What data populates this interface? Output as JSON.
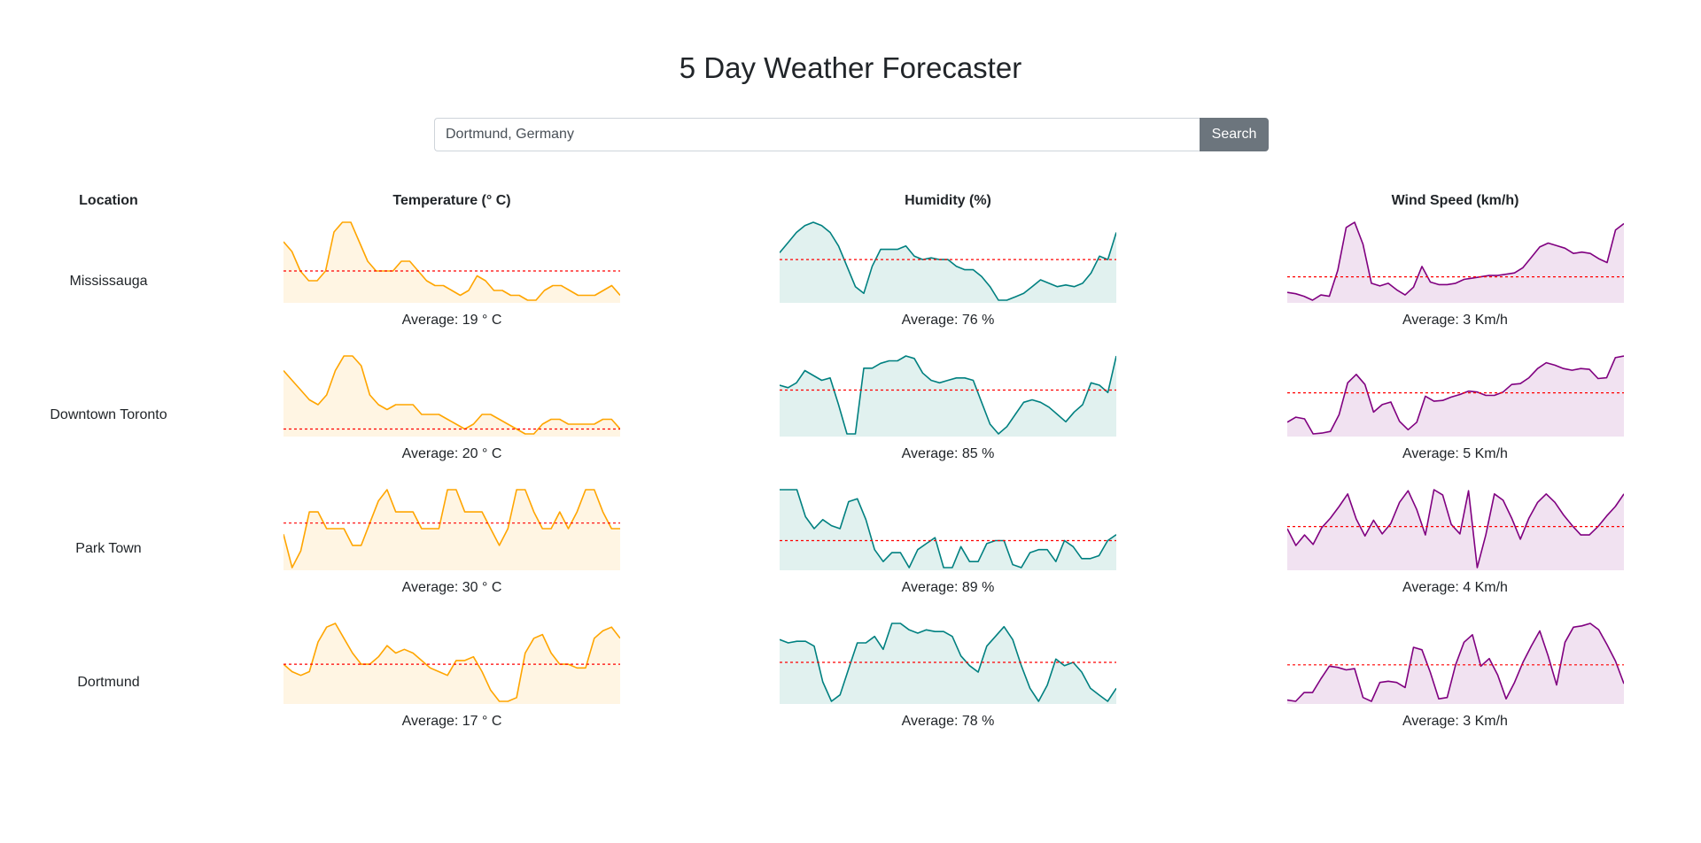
{
  "header": {
    "title": "5 Day Weather Forecaster"
  },
  "search": {
    "value": "Dortmund, Germany",
    "button_label": "Search"
  },
  "table": {
    "headers": {
      "location": "Location",
      "temperature": "Temperature (° C)",
      "humidity": "Humidity (%)",
      "wind": "Wind Speed (km/h)"
    }
  },
  "colors": {
    "temperature_line": "#ffa500",
    "temperature_fill": "#fff5e3",
    "humidity_line": "#008080",
    "humidity_fill": "#e1f1ef",
    "wind_line": "#800080",
    "wind_fill": "#f1e2f1",
    "average_line": "#ff0000"
  },
  "chart_data": [
    {
      "type": "line",
      "location": "Mississauga",
      "temperature": {
        "average_label": "Average: 19 ° C",
        "values": [
          22,
          21,
          19,
          18,
          18,
          19,
          23,
          24,
          24,
          22,
          20,
          19,
          19,
          19,
          20,
          20,
          19,
          18,
          17.5,
          17.5,
          17,
          16.5,
          17,
          18.5,
          18,
          17,
          17,
          16.5,
          16.5,
          16,
          16,
          17,
          17.5,
          17.5,
          17,
          16.5,
          16.5,
          16.5,
          17,
          17.5,
          16.5
        ]
      },
      "humidity": {
        "average_label": "Average: 76 %",
        "values": [
          78,
          81,
          84,
          86,
          87,
          86,
          84,
          80,
          74,
          68,
          66,
          74,
          79,
          79,
          79,
          80,
          77,
          76,
          76.5,
          76,
          76,
          74,
          73,
          73,
          71,
          68,
          64,
          64,
          65,
          66,
          68,
          70,
          69,
          68,
          68.5,
          68,
          69,
          72,
          77,
          76,
          84
        ]
      },
      "wind": {
        "average_label": "Average: 3 Km/h",
        "values": [
          1.8,
          1.7,
          1.5,
          1.2,
          1.6,
          1.5,
          3.5,
          6.8,
          7.2,
          5.5,
          2.5,
          2.3,
          2.5,
          2,
          1.6,
          2.2,
          3.8,
          2.6,
          2.4,
          2.4,
          2.5,
          2.8,
          2.9,
          3,
          3.1,
          3.1,
          3.2,
          3.3,
          3.7,
          4.5,
          5.3,
          5.6,
          5.4,
          5.2,
          4.8,
          4.9,
          4.8,
          4.4,
          4.1,
          6.6,
          7.1
        ]
      },
      "averages": {
        "temperature": 19,
        "humidity": 76,
        "wind": 3
      }
    },
    {
      "type": "line",
      "location": "Downtown Toronto",
      "temperature": {
        "average_label": "Average: 20 ° C",
        "values": [
          26,
          25,
          24,
          23,
          22.5,
          23.5,
          26,
          27.5,
          27.5,
          26.5,
          23.5,
          22.5,
          22,
          22.5,
          22.5,
          22.5,
          21.5,
          21.5,
          21.5,
          21,
          20.5,
          20,
          20.5,
          21.5,
          21.5,
          21,
          20.5,
          20,
          19.5,
          19.5,
          20.5,
          21,
          21,
          20.5,
          20.5,
          20.5,
          20.5,
          21,
          21,
          20
        ]
      },
      "humidity": {
        "average_label": "Average: 85 %",
        "values": [
          87,
          86,
          88,
          93,
          91,
          89,
          90,
          79,
          67,
          67,
          94,
          94,
          96,
          97,
          97,
          99,
          98,
          92,
          89,
          88,
          89,
          90,
          90,
          89,
          80,
          71,
          67,
          70,
          75,
          80,
          81,
          80,
          78,
          75,
          72,
          76,
          79,
          88,
          87,
          84,
          99
        ]
      },
      "wind": {
        "average_label": "Average: 5 Km/h",
        "values": [
          1.5,
          2.1,
          1.9,
          0.1,
          0.2,
          0.4,
          2.4,
          6.2,
          7.2,
          6,
          2.7,
          3.6,
          3.9,
          1.6,
          0.6,
          1.5,
          4.6,
          4,
          4.1,
          4.5,
          4.8,
          5.2,
          5.1,
          4.7,
          4.7,
          5.1,
          6,
          6.1,
          6.8,
          7.9,
          8.6,
          8.3,
          7.9,
          7.7,
          7.9,
          7.8,
          6.7,
          6.8,
          9.2,
          9.4
        ]
      },
      "averages": {
        "temperature": 20,
        "humidity": 85,
        "wind": 5
      }
    },
    {
      "type": "line",
      "location": "Park Town",
      "temperature": {
        "average_label": "Average: 30 ° C",
        "values": [
          29,
          26,
          27.5,
          31,
          31,
          29.5,
          29.5,
          29.5,
          28,
          28,
          30,
          32,
          33,
          31,
          31,
          31,
          29.5,
          29.5,
          29.5,
          33,
          33,
          31,
          31,
          31,
          29.5,
          28,
          29.5,
          33,
          33,
          31,
          29.5,
          29.5,
          31,
          29.5,
          31,
          33,
          33,
          31,
          29.5,
          29.5
        ]
      },
      "humidity": {
        "average_label": "Average: 89 %",
        "values": [
          106,
          106,
          106,
          97,
          93,
          96,
          94,
          93,
          102,
          103,
          96,
          86,
          82,
          85,
          85,
          80,
          86,
          88,
          90,
          80,
          80,
          87,
          82,
          82,
          88,
          89,
          89,
          81,
          80,
          85,
          86,
          86,
          82,
          89,
          87,
          83,
          83,
          84,
          89,
          91
        ]
      },
      "wind": {
        "average_label": "Average: 4 Km/h",
        "values": [
          3.8,
          2.2,
          3.2,
          2.3,
          3.9,
          4.8,
          5.9,
          7.1,
          4.7,
          3.1,
          4.6,
          3.3,
          4.3,
          6.3,
          7.4,
          5.6,
          3.2,
          7.5,
          7,
          4.2,
          3.3,
          7.4,
          0.1,
          3.2,
          7.1,
          6.5,
          4.8,
          2.8,
          4.8,
          6.3,
          7.1,
          6.3,
          5.1,
          4.1,
          3.2,
          3.2,
          4,
          5,
          5.9,
          7.1
        ]
      },
      "averages": {
        "temperature": 30,
        "humidity": 89,
        "wind": 4
      }
    },
    {
      "type": "line",
      "location": "Dortmund",
      "temperature": {
        "average_label": "Average: 17 ° C",
        "values": [
          17,
          16,
          15.5,
          16,
          20,
          22,
          22.5,
          20.5,
          18.5,
          17,
          17,
          18,
          19.5,
          18.5,
          19,
          18.5,
          17.5,
          16.5,
          16,
          15.5,
          17.5,
          17.5,
          18,
          16,
          13.5,
          12,
          12,
          12.5,
          18.5,
          20.5,
          21,
          18.5,
          17,
          17,
          16.5,
          16.5,
          20.5,
          21.5,
          22,
          20.5
        ]
      },
      "humidity": {
        "average_label": "Average: 78 %",
        "values": [
          85,
          84,
          84.5,
          84.5,
          83,
          72,
          66,
          68,
          76,
          84,
          84,
          86,
          82,
          90,
          90,
          88,
          87,
          88,
          87.5,
          87.5,
          86,
          80,
          77,
          75,
          83,
          86,
          89,
          85,
          77,
          70,
          66,
          71,
          79,
          77,
          78,
          75,
          70,
          68,
          66,
          70
        ]
      },
      "wind": {
        "average_label": "Average: 3 Km/h",
        "values": [
          0.2,
          0.1,
          0.8,
          0.8,
          1.9,
          2.9,
          2.8,
          2.6,
          2.7,
          0.4,
          0.1,
          1.6,
          1.7,
          1.6,
          1.2,
          4.4,
          4.2,
          2.4,
          0.3,
          0.4,
          3,
          4.8,
          5.4,
          2.9,
          3.5,
          2.2,
          0.3,
          1.6,
          3.2,
          4.5,
          5.7,
          3.7,
          1.4,
          4.8,
          6,
          6.1,
          6.3,
          5.8,
          4.6,
          3.3,
          1.5
        ]
      },
      "averages": {
        "temperature": 17,
        "humidity": 78,
        "wind": 3
      }
    }
  ]
}
